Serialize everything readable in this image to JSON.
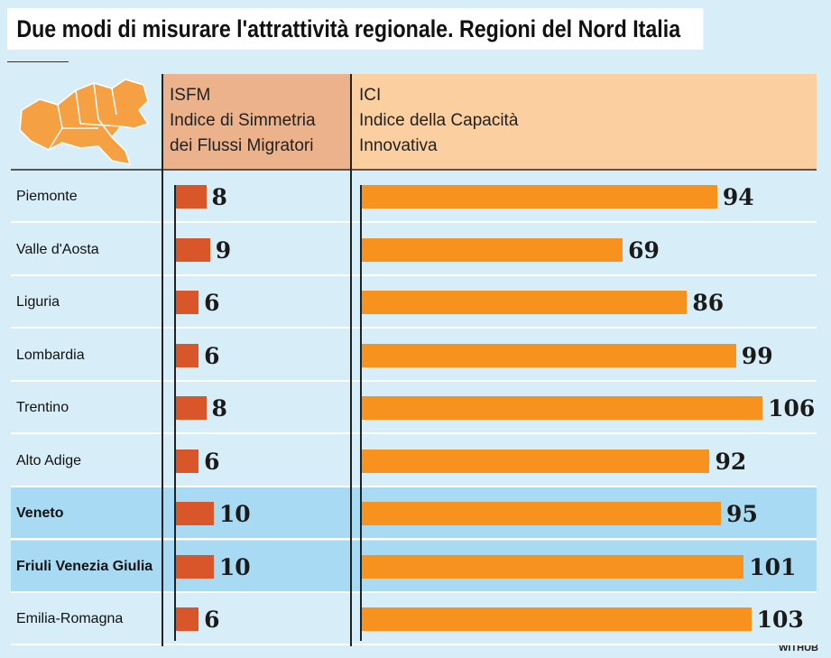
{
  "chart_data": {
    "type": "bar",
    "title": "Due modi di misurare l'attrattività regionale. Regioni del Nord Italia",
    "categories": [
      "Piemonte",
      "Valle d'Aosta",
      "Liguria",
      "Lombardia",
      "Trentino",
      "Alto Adige",
      "Veneto",
      "Friuli Venezia Giulia",
      "Emilia-Romagna"
    ],
    "highlight_rows": [
      6,
      7
    ],
    "series": [
      {
        "name": "ISFM",
        "description": "Indice di Simmetria dei Flussi Migratori",
        "color": "#d9562a",
        "values": [
          8,
          9,
          6,
          6,
          8,
          6,
          10,
          10,
          6
        ]
      },
      {
        "name": "ICI",
        "description": "Indice della Capacità Innovativa",
        "color": "#f7921e",
        "values": [
          94,
          69,
          86,
          99,
          106,
          92,
          95,
          101,
          103
        ]
      }
    ],
    "source": "WITHUB"
  }
}
